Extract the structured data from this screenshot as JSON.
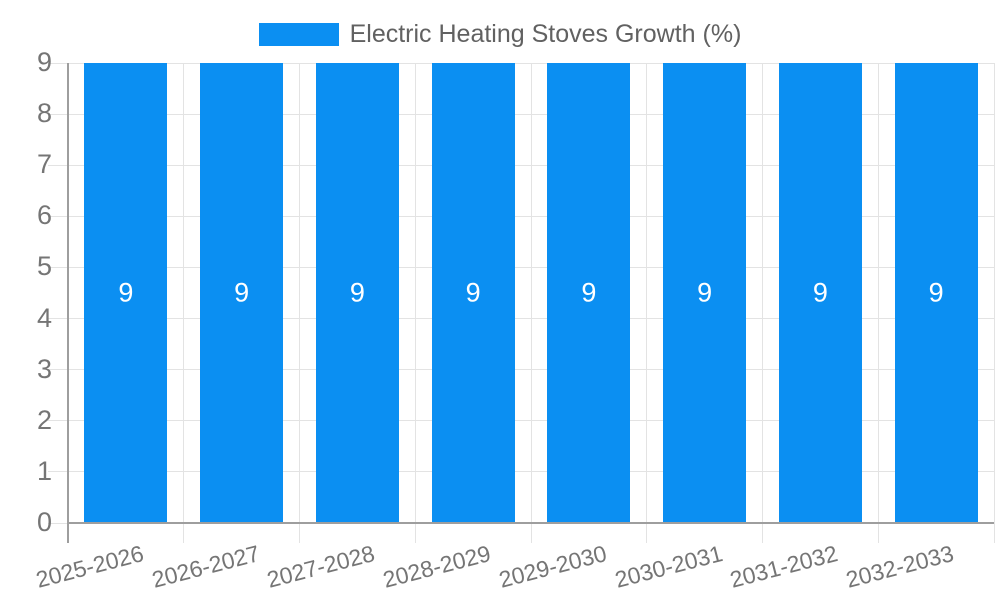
{
  "chart_data": {
    "type": "bar",
    "title": "Electric Heating Stoves Growth (%)",
    "categories": [
      "2025-2026",
      "2026-2027",
      "2027-2028",
      "2028-2029",
      "2029-2030",
      "2030-2031",
      "2031-2032",
      "2032-2033"
    ],
    "series": [
      {
        "name": "Electric Heating Stoves Growth (%)",
        "values": [
          9,
          9,
          9,
          9,
          9,
          9,
          9,
          9
        ]
      }
    ],
    "bar_value_labels": [
      "9",
      "9",
      "9",
      "9",
      "9",
      "9",
      "9",
      "9"
    ],
    "xlabel": "",
    "ylabel": "",
    "ylim": [
      0,
      9
    ],
    "yticks": [
      0,
      1,
      2,
      3,
      4,
      5,
      6,
      7,
      8,
      9
    ],
    "grid": true,
    "legend_position": "top-center",
    "colors": {
      "bar": "#0b8ff2",
      "bar_label": "#ffffff",
      "grid": "#e3e3e3",
      "axis": "#9e9e9e",
      "tick_label": "#757575",
      "title": "#616161",
      "background": "#ffffff"
    }
  }
}
